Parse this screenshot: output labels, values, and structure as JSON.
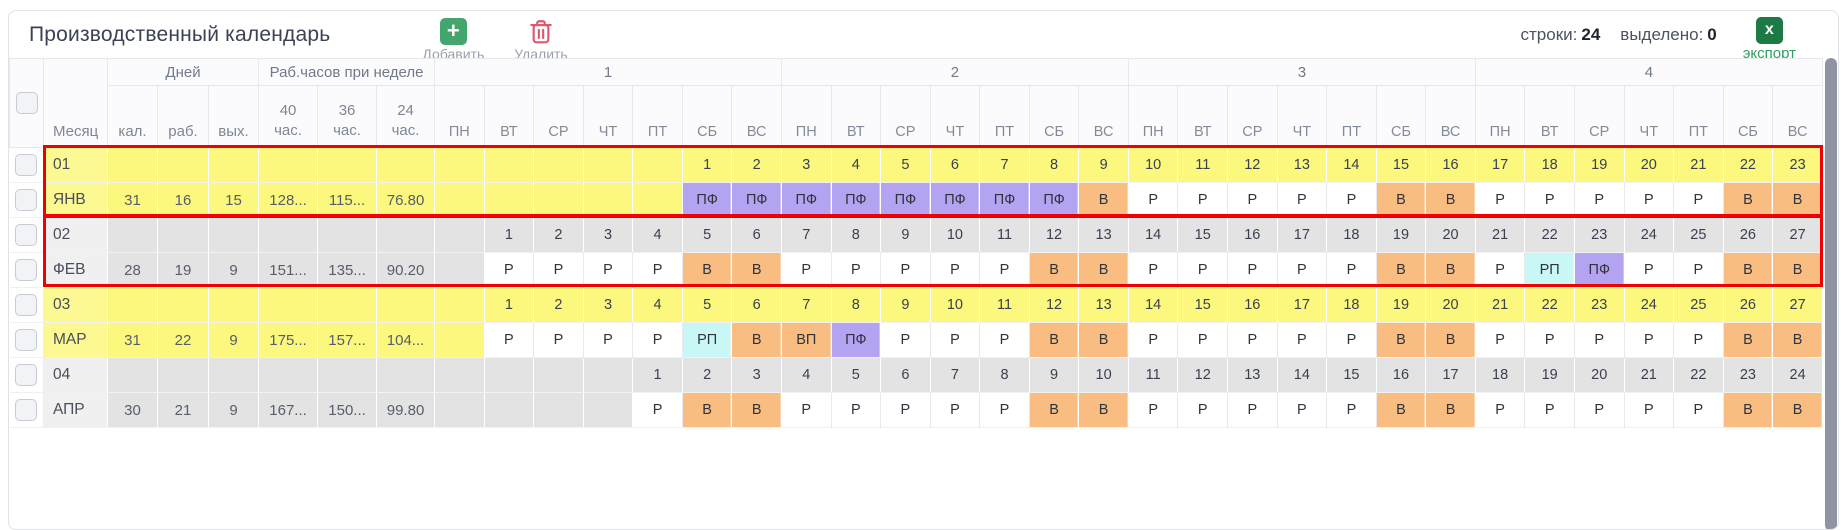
{
  "toolbar": {
    "title": "Производственный календарь",
    "add_label": "Добавить",
    "delete_label": "Удалить",
    "rows_label": "строки:",
    "rows_count": "24",
    "selected_label": "выделено:",
    "selected_count": "0",
    "export_icon_letter": "x",
    "export_label": "экспорт"
  },
  "colors": {
    "accent_green": "#45a56f",
    "export_green_dark": "#1e7a45",
    "export_green_text": "#2f9e5f",
    "delete_red": "#dc5a6e",
    "highlight_red": "#f00000",
    "row_yellow": "#fcf77d",
    "row_yellow_month": "#fdf992",
    "row_gray": "#e3e3e4",
    "row_gray_month": "#f0f0f1"
  },
  "table": {
    "header": {
      "month": "Месяц",
      "days_group": "Дней",
      "days_cols": [
        "кал.",
        "раб.",
        "вых."
      ],
      "hours_group": "Раб.часов при неделе",
      "hours_cols": [
        [
          "40",
          "час."
        ],
        [
          "36",
          "час."
        ],
        [
          "24",
          "час."
        ]
      ],
      "weeks": [
        "1",
        "2",
        "3",
        "4"
      ],
      "weekdays": [
        "ПН",
        "ВТ",
        "СР",
        "ЧТ",
        "ПТ",
        "СБ",
        "ВС"
      ]
    },
    "code_colors": {
      "Р": "#ffffff",
      "В": "#f9bd81",
      "ПФ": "#b4a3f1",
      "РП": "#c9f7f6",
      "ВП": "#f9bd81"
    },
    "rows": [
      {
        "kind": "days",
        "theme": "yellow",
        "month": "01",
        "stats": [
          "",
          "",
          "",
          "",
          "",
          ""
        ],
        "cells": [
          "",
          "",
          "",
          "",
          "",
          "1",
          "2",
          "3",
          "4",
          "5",
          "6",
          "7",
          "8",
          "9",
          "10",
          "11",
          "12",
          "13",
          "14",
          "15",
          "16",
          "17",
          "18",
          "19",
          "20",
          "21",
          "22",
          "23"
        ]
      },
      {
        "kind": "codes",
        "theme": "yellow",
        "month": "ЯНВ",
        "stats": [
          "31",
          "16",
          "15",
          "128...",
          "115...",
          "76.80"
        ],
        "cells": [
          "",
          "",
          "",
          "",
          "",
          "ПФ",
          "ПФ",
          "ПФ",
          "ПФ",
          "ПФ",
          "ПФ",
          "ПФ",
          "ПФ",
          "В",
          "Р",
          "Р",
          "Р",
          "Р",
          "Р",
          "В",
          "В",
          "Р",
          "Р",
          "Р",
          "Р",
          "Р",
          "В",
          "В"
        ]
      },
      {
        "kind": "days",
        "theme": "gray",
        "month": "02",
        "stats": [
          "",
          "",
          "",
          "",
          "",
          ""
        ],
        "cells": [
          "",
          "1",
          "2",
          "3",
          "4",
          "5",
          "6",
          "7",
          "8",
          "9",
          "10",
          "11",
          "12",
          "13",
          "14",
          "15",
          "16",
          "17",
          "18",
          "19",
          "20",
          "21",
          "22",
          "23",
          "24",
          "25",
          "26",
          "27"
        ]
      },
      {
        "kind": "codes",
        "theme": "gray",
        "month": "ФЕВ",
        "stats": [
          "28",
          "19",
          "9",
          "151...",
          "135...",
          "90.20"
        ],
        "cells": [
          "",
          "Р",
          "Р",
          "Р",
          "Р",
          "В",
          "В",
          "Р",
          "Р",
          "Р",
          "Р",
          "Р",
          "В",
          "В",
          "Р",
          "Р",
          "Р",
          "Р",
          "Р",
          "В",
          "В",
          "Р",
          "РП",
          "ПФ",
          "Р",
          "Р",
          "В",
          "В"
        ]
      },
      {
        "kind": "days",
        "theme": "yellow",
        "month": "03",
        "stats": [
          "",
          "",
          "",
          "",
          "",
          ""
        ],
        "cells": [
          "",
          "1",
          "2",
          "3",
          "4",
          "5",
          "6",
          "7",
          "8",
          "9",
          "10",
          "11",
          "12",
          "13",
          "14",
          "15",
          "16",
          "17",
          "18",
          "19",
          "20",
          "21",
          "22",
          "23",
          "24",
          "25",
          "26",
          "27"
        ]
      },
      {
        "kind": "codes",
        "theme": "yellow",
        "month": "МАР",
        "stats": [
          "31",
          "22",
          "9",
          "175...",
          "157...",
          "104..."
        ],
        "cells": [
          "",
          "Р",
          "Р",
          "Р",
          "Р",
          "РП",
          "В",
          "ВП",
          "ПФ",
          "Р",
          "Р",
          "Р",
          "В",
          "В",
          "Р",
          "Р",
          "Р",
          "Р",
          "Р",
          "В",
          "В",
          "Р",
          "Р",
          "Р",
          "Р",
          "Р",
          "В",
          "В"
        ]
      },
      {
        "kind": "days",
        "theme": "gray",
        "month": "04",
        "stats": [
          "",
          "",
          "",
          "",
          "",
          ""
        ],
        "cells": [
          "",
          "",
          "",
          "",
          "1",
          "2",
          "3",
          "4",
          "5",
          "6",
          "7",
          "8",
          "9",
          "10",
          "11",
          "12",
          "13",
          "14",
          "15",
          "16",
          "17",
          "18",
          "19",
          "20",
          "21",
          "22",
          "23",
          "24"
        ]
      },
      {
        "kind": "codes",
        "theme": "gray",
        "month": "АПР",
        "stats": [
          "30",
          "21",
          "9",
          "167...",
          "150...",
          "99.80"
        ],
        "cells": [
          "",
          "",
          "",
          "",
          "Р",
          "В",
          "В",
          "Р",
          "Р",
          "Р",
          "Р",
          "Р",
          "В",
          "В",
          "Р",
          "Р",
          "Р",
          "Р",
          "Р",
          "В",
          "В",
          "Р",
          "Р",
          "Р",
          "Р",
          "Р",
          "В",
          "В"
        ]
      }
    ]
  }
}
